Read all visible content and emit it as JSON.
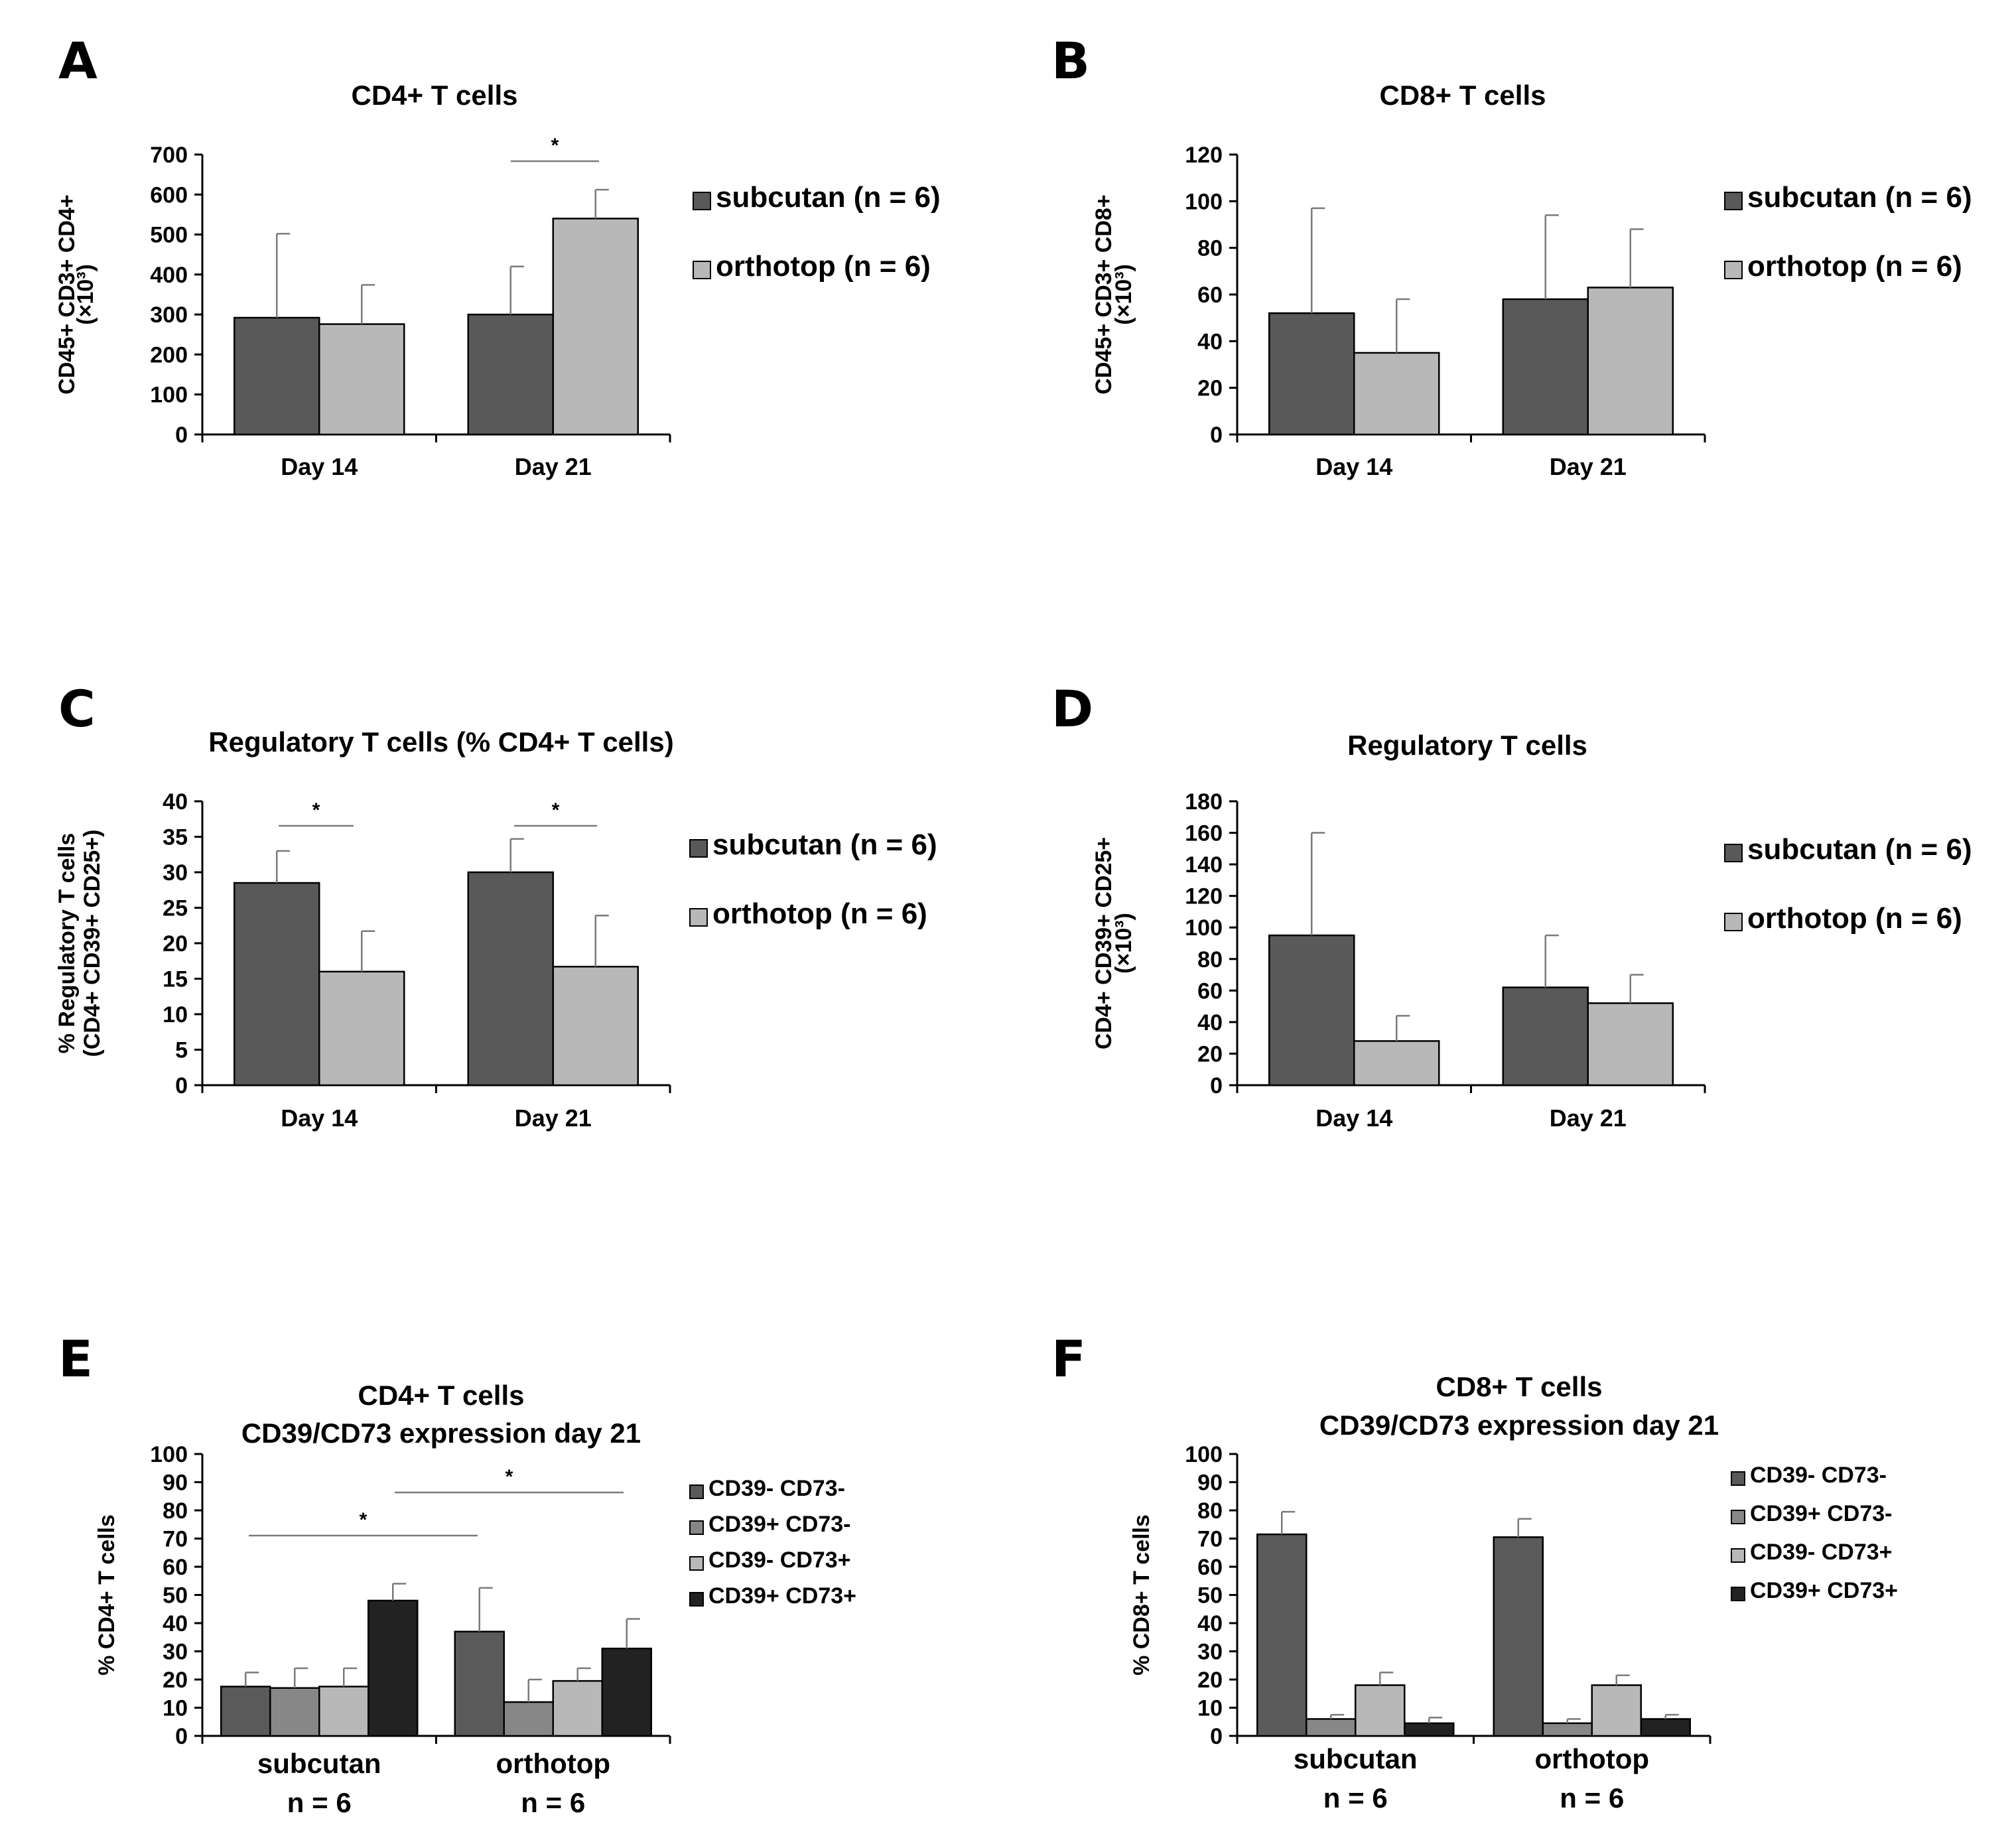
{
  "chart_data": [
    {
      "panel": "A",
      "type": "bar",
      "title": "CD4+ T cells",
      "ylabel": "CD45+ CD3+ CD4+",
      "ylabel2": "(×10³)",
      "categories": [
        "Day 14",
        "Day 21"
      ],
      "ylim": [
        0,
        700
      ],
      "yticks": [
        0,
        100,
        200,
        300,
        400,
        500,
        600,
        700
      ],
      "series": [
        {
          "name": "subcutan (n = 6)",
          "values": [
            292,
            300
          ],
          "errors": [
            210,
            120
          ],
          "color": "#595959"
        },
        {
          "name": "orthotop (n = 6)",
          "values": [
            276,
            540
          ],
          "errors": [
            98,
            72
          ],
          "color": "#b8b8b8"
        }
      ],
      "significance": [
        {
          "label": "*",
          "category": 1
        }
      ],
      "legend": "right"
    },
    {
      "panel": "B",
      "type": "bar",
      "title": "CD8+ T cells",
      "ylabel": "CD45+ CD3+ CD8+",
      "ylabel2": "(×10³)",
      "categories": [
        "Day 14",
        "Day 21"
      ],
      "ylim": [
        0,
        120
      ],
      "yticks": [
        0,
        20,
        40,
        60,
        80,
        100,
        120
      ],
      "series": [
        {
          "name": "subcutan (n = 6)",
          "values": [
            52,
            58
          ],
          "errors": [
            45,
            36
          ],
          "color": "#595959"
        },
        {
          "name": "orthotop (n = 6)",
          "values": [
            35,
            63
          ],
          "errors": [
            23,
            25
          ],
          "color": "#b8b8b8"
        }
      ],
      "legend": "right"
    },
    {
      "panel": "C",
      "type": "bar",
      "title": "Regulatory T cells (% CD4+ T cells)",
      "ylabel": "% Regulatory T cells",
      "ylabel2": "(CD4+ CD39+ CD25+)",
      "categories": [
        "Day 14",
        "Day 21"
      ],
      "ylim": [
        0,
        40
      ],
      "yticks": [
        0,
        5,
        10,
        15,
        20,
        25,
        30,
        35,
        40
      ],
      "series": [
        {
          "name": "subcutan (n = 6)",
          "values": [
            28.5,
            30
          ],
          "errors": [
            4.5,
            4.7
          ],
          "color": "#595959"
        },
        {
          "name": "orthotop (n = 6)",
          "values": [
            16,
            16.7
          ],
          "errors": [
            5.7,
            7.2
          ],
          "color": "#b8b8b8"
        }
      ],
      "significance": [
        {
          "label": "*",
          "category": 0
        },
        {
          "label": "*",
          "category": 1
        }
      ],
      "legend": "right"
    },
    {
      "panel": "D",
      "type": "bar",
      "title": "Regulatory T cells",
      "ylabel": "CD4+ CD39+ CD25+",
      "ylabel2": "(×10³)",
      "categories": [
        "Day 14",
        "Day 21"
      ],
      "ylim": [
        0,
        180
      ],
      "yticks": [
        0,
        20,
        40,
        60,
        80,
        100,
        120,
        140,
        160,
        180
      ],
      "series": [
        {
          "name": "subcutan (n = 6)",
          "values": [
            95,
            62
          ],
          "errors": [
            65,
            33
          ],
          "color": "#595959"
        },
        {
          "name": "orthotop (n = 6)",
          "values": [
            28,
            52
          ],
          "errors": [
            16,
            18
          ],
          "color": "#b8b8b8"
        }
      ],
      "legend": "right"
    },
    {
      "panel": "E",
      "type": "bar",
      "title": [
        "CD4+ T cells",
        "CD39/CD73 expression day 21"
      ],
      "ylabel": "% CD4+ T cells",
      "categories": [
        [
          "subcutan",
          "n = 6"
        ],
        [
          "orthotop",
          "n = 6"
        ]
      ],
      "ylim": [
        0,
        100
      ],
      "yticks": [
        0,
        10,
        20,
        30,
        40,
        50,
        60,
        70,
        80,
        90,
        100
      ],
      "series": [
        {
          "name": "CD39- CD73-",
          "values": [
            17.5,
            37
          ],
          "errors": [
            5,
            15.5
          ],
          "color": "#5a5a5a"
        },
        {
          "name": "CD39+ CD73-",
          "values": [
            17,
            12
          ],
          "errors": [
            7,
            8
          ],
          "color": "#878787"
        },
        {
          "name": "CD39- CD73+",
          "values": [
            17.5,
            19.5
          ],
          "errors": [
            6.5,
            4.5
          ],
          "color": "#b8b8b8"
        },
        {
          "name": "CD39+ CD73+",
          "values": [
            48,
            31
          ],
          "errors": [
            6,
            10.5
          ],
          "color": "#222222"
        }
      ],
      "significance": [
        {
          "label": "*",
          "from": [
            0,
            0
          ],
          "to": [
            1,
            0
          ]
        },
        {
          "label": "*",
          "from": [
            0,
            3
          ],
          "to": [
            1,
            3
          ]
        }
      ],
      "legend": "right"
    },
    {
      "panel": "F",
      "type": "bar",
      "title": [
        "CD8+ T cells",
        "CD39/CD73 expression day 21"
      ],
      "ylabel": "% CD8+ T cells",
      "categories": [
        [
          "subcutan",
          "n = 6"
        ],
        [
          "orthotop",
          "n = 6"
        ]
      ],
      "ylim": [
        0,
        100
      ],
      "yticks": [
        0,
        10,
        20,
        30,
        40,
        50,
        60,
        70,
        80,
        90,
        100
      ],
      "series": [
        {
          "name": "CD39- CD73-",
          "values": [
            71.5,
            70.5
          ],
          "errors": [
            8,
            6.5
          ],
          "color": "#5a5a5a"
        },
        {
          "name": "CD39+ CD73-",
          "values": [
            6,
            4.5
          ],
          "errors": [
            1.5,
            1.5
          ],
          "color": "#878787"
        },
        {
          "name": "CD39- CD73+",
          "values": [
            18,
            18
          ],
          "errors": [
            4.5,
            3.5
          ],
          "color": "#b8b8b8"
        },
        {
          "name": "CD39+ CD73+",
          "values": [
            4.5,
            6
          ],
          "errors": [
            2,
            1.5
          ],
          "color": "#222222"
        }
      ],
      "legend": "right"
    }
  ]
}
